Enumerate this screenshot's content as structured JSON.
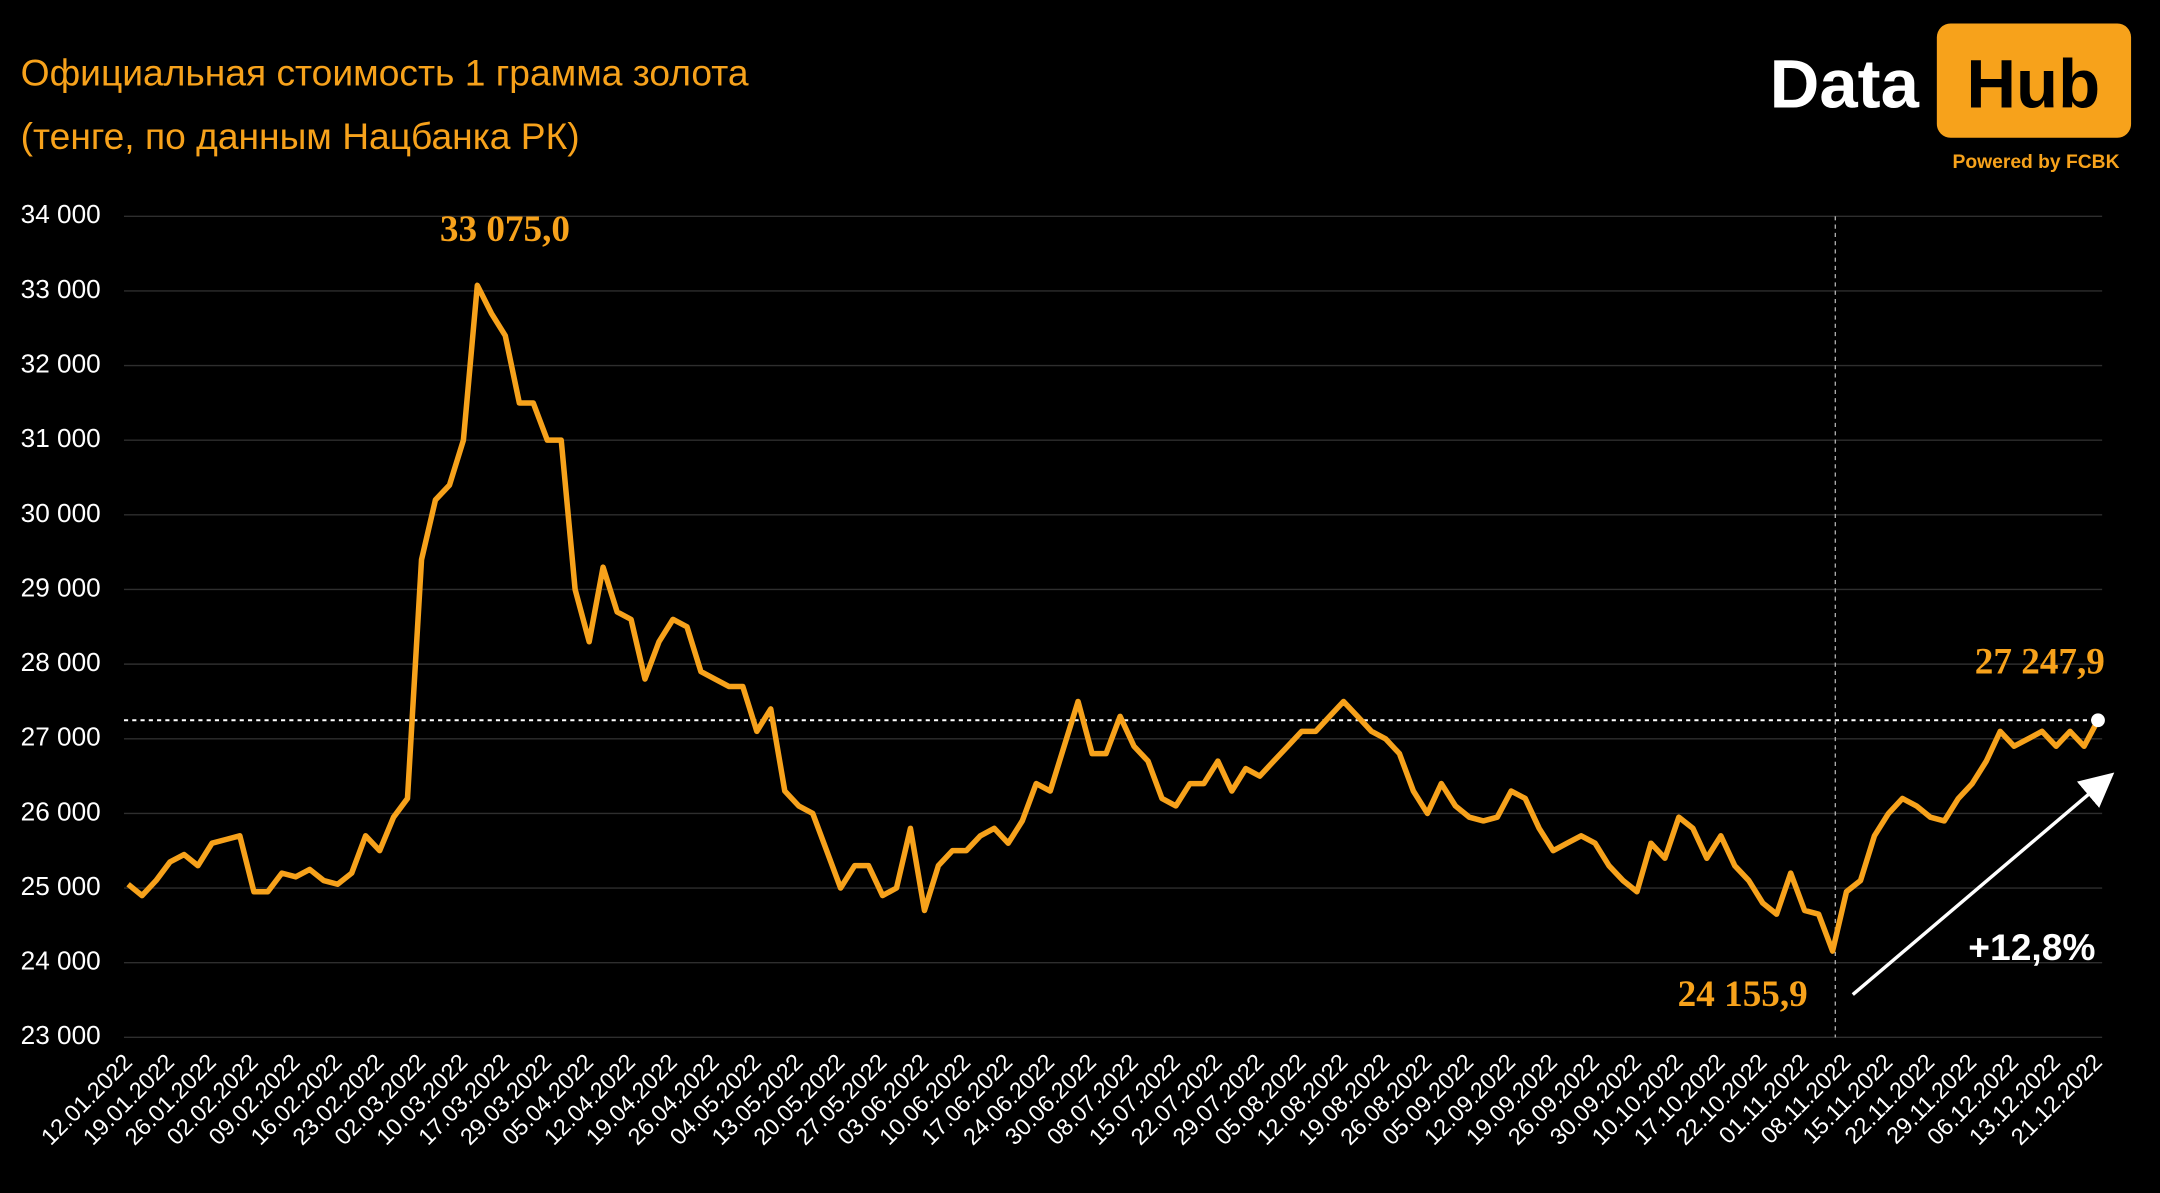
{
  "chart_data": {
    "type": "line",
    "title": "Официальная стоимость 1 грамма золота",
    "subtitle": "(тенге, по данным Нацбанка РК)",
    "logo": {
      "text": "Data",
      "badge": "Hub",
      "tagline": "Powered by FCBK"
    },
    "color": "#f7a21b",
    "grid": true,
    "ylim": [
      23000,
      34000
    ],
    "yticks": [
      {
        "value": 23000,
        "label": "23 000"
      },
      {
        "value": 24000,
        "label": "24 000"
      },
      {
        "value": 25000,
        "label": "25 000"
      },
      {
        "value": 26000,
        "label": "26 000"
      },
      {
        "value": 27000,
        "label": "27 000"
      },
      {
        "value": 28000,
        "label": "28 000"
      },
      {
        "value": 29000,
        "label": "29 000"
      },
      {
        "value": 30000,
        "label": "30 000"
      },
      {
        "value": 31000,
        "label": "31 000"
      },
      {
        "value": 32000,
        "label": "32 000"
      },
      {
        "value": 33000,
        "label": "33 000"
      },
      {
        "value": 34000,
        "label": "34 000"
      }
    ],
    "categories": [
      "12.01.2022",
      null,
      null,
      "19.01.2022",
      null,
      null,
      "26.01.2022",
      null,
      null,
      "02.02.2022",
      null,
      null,
      "09.02.2022",
      null,
      null,
      "16.02.2022",
      null,
      null,
      "23.02.2022",
      null,
      null,
      "02.03.2022",
      null,
      null,
      "10.03.2022",
      null,
      null,
      "17.03.2022",
      null,
      null,
      "29.03.2022",
      null,
      null,
      "05.04.2022",
      null,
      null,
      "12.04.2022",
      null,
      null,
      "19.04.2022",
      null,
      null,
      "26.04.2022",
      null,
      null,
      "04.05.2022",
      null,
      null,
      "13.05.2022",
      null,
      null,
      "20.05.2022",
      null,
      null,
      "27.05.2022",
      null,
      null,
      "03.06.2022",
      null,
      null,
      "10.06.2022",
      null,
      null,
      "17.06.2022",
      null,
      null,
      "24.06.2022",
      null,
      null,
      "30.06.2022",
      null,
      null,
      "08.07.2022",
      null,
      null,
      "15.07.2022",
      null,
      null,
      "22.07.2022",
      null,
      null,
      "29.07.2022",
      null,
      null,
      "05.08.2022",
      null,
      null,
      "12.08.2022",
      null,
      null,
      "19.08.2022",
      null,
      null,
      "26.08.2022",
      null,
      null,
      "05.09.2022",
      null,
      null,
      "12.09.2022",
      null,
      null,
      "19.09.2022",
      null,
      null,
      "26.09.2022",
      null,
      null,
      "30.09.2022",
      null,
      null,
      "10.10.2022",
      null,
      null,
      "17.10.2022",
      null,
      null,
      "22.10.2022",
      null,
      null,
      "01.11.2022",
      null,
      null,
      "08.11.2022",
      null,
      null,
      "15.11.2022",
      null,
      null,
      "22.11.2022",
      null,
      null,
      "29.11.2022",
      null,
      null,
      "06.12.2022",
      null,
      null,
      "13.12.2022",
      null,
      null,
      "21.12.2022"
    ],
    "values": [
      25050,
      24900,
      25100,
      25350,
      25450,
      25300,
      25600,
      25650,
      25700,
      24950,
      24950,
      25200,
      25150,
      25250,
      25100,
      25050,
      25200,
      25700,
      25500,
      25950,
      26200,
      29400,
      30200,
      30400,
      31000,
      33075,
      32700,
      32400,
      31500,
      31500,
      31000,
      31000,
      29000,
      28300,
      29300,
      28700,
      28600,
      27800,
      28300,
      28600,
      28500,
      27900,
      27800,
      27700,
      27700,
      27100,
      27400,
      26300,
      26100,
      26000,
      25500,
      25000,
      25300,
      25300,
      24900,
      25000,
      25800,
      24700,
      25300,
      25500,
      25500,
      25700,
      25800,
      25600,
      25900,
      26400,
      26300,
      26900,
      27500,
      26800,
      26800,
      27300,
      26900,
      26700,
      26200,
      26100,
      26400,
      26400,
      26700,
      26300,
      26600,
      26500,
      26700,
      26900,
      27100,
      27100,
      27300,
      27500,
      27300,
      27100,
      27000,
      26800,
      26300,
      26000,
      26400,
      26100,
      25950,
      25900,
      25950,
      26300,
      26200,
      25800,
      25500,
      25600,
      25700,
      25600,
      25300,
      25100,
      24950,
      25600,
      25400,
      25950,
      25800,
      25400,
      25700,
      25300,
      25100,
      24800,
      24650,
      25200,
      24700,
      24650,
      24155.9,
      24950,
      25100,
      25700,
      26000,
      26200,
      26100,
      25950,
      25900,
      26200,
      26400,
      26700,
      27100,
      26900,
      27000,
      27100,
      26900,
      27100,
      26900,
      27247.9
    ],
    "annotations": [
      {
        "label": "33 075,0",
        "value": 33075
      },
      {
        "label": "27 247,9",
        "value": 27247.9
      },
      {
        "label": "24 155,9",
        "value": 24155.9
      }
    ],
    "change": {
      "label": "+12,8%",
      "value": 12.8
    }
  }
}
